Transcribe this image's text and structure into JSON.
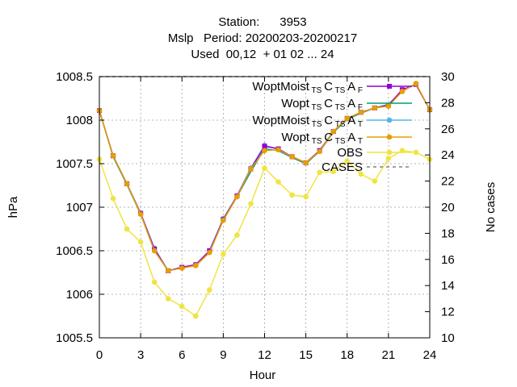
{
  "chart_data": {
    "type": "line",
    "title_lines": [
      "Station:      3953",
      "Mslp   Period: 20200203-20200217",
      "Used  00,12  + 01 02 ... 24"
    ],
    "xlabel": "Hour",
    "ylabel": "hPa",
    "y2label": "No cases",
    "xlim": [
      0,
      24
    ],
    "ylim": [
      1005.5,
      1008.5
    ],
    "y2lim": [
      10,
      30
    ],
    "xticks": [
      0,
      3,
      6,
      9,
      12,
      15,
      18,
      21,
      24
    ],
    "yticks": [
      1005.5,
      1006,
      1006.5,
      1007,
      1007.5,
      1008,
      1008.5
    ],
    "y2ticks": [
      10,
      12,
      14,
      16,
      18,
      20,
      22,
      24,
      26,
      28,
      30
    ],
    "grid": true,
    "legend_position": "top-right",
    "x": [
      0,
      1,
      2,
      3,
      4,
      5,
      6,
      7,
      8,
      9,
      10,
      11,
      12,
      13,
      14,
      15,
      16,
      17,
      18,
      19,
      20,
      21,
      22,
      23,
      24
    ],
    "series": [
      {
        "name": "WoptMoist TS CTS AF",
        "label_parts": [
          "WoptMoist",
          "TS",
          "C",
          "TS",
          "A",
          "F"
        ],
        "color": "#9400d3",
        "marker": "square",
        "values": [
          1008.11,
          1007.59,
          1007.27,
          1006.93,
          1006.52,
          1006.27,
          1006.31,
          1006.34,
          1006.5,
          1006.86,
          1007.13,
          1007.44,
          1007.7,
          1007.67,
          1007.58,
          1007.51,
          1007.65,
          1007.87,
          1008.02,
          1008.09,
          1008.14,
          1008.17,
          1008.35,
          1008.41,
          1008.12
        ]
      },
      {
        "name": "Wopt TS CTS AF",
        "label_parts": [
          "Wopt",
          "TS",
          "C",
          "TS",
          "A",
          "F"
        ],
        "color": "#009e73",
        "marker": "none",
        "values": [
          1008.11,
          1007.58,
          1007.26,
          1006.92,
          1006.5,
          1006.27,
          1006.31,
          1006.33,
          1006.48,
          1006.85,
          1007.12,
          1007.41,
          1007.67,
          1007.65,
          1007.57,
          1007.5,
          1007.64,
          1007.86,
          1008.01,
          1008.08,
          1008.14,
          1008.18,
          1008.34,
          1008.41,
          1008.12
        ]
      },
      {
        "name": "WoptMoist TS CTS AT",
        "label_parts": [
          "WoptMoist",
          "TS",
          "C",
          "TS",
          "A",
          "T"
        ],
        "color": "#56b4e9",
        "marker": "circle",
        "values": [
          1008.11,
          1007.59,
          1007.27,
          1006.93,
          1006.53,
          1006.27,
          1006.31,
          1006.34,
          1006.5,
          1006.87,
          1007.13,
          1007.45,
          1007.71,
          1007.67,
          1007.58,
          1007.51,
          1007.65,
          1007.87,
          1008.02,
          1008.09,
          1008.14,
          1008.17,
          1008.33,
          1008.42,
          1008.12
        ]
      },
      {
        "name": "Wopt TS CTS AT",
        "label_parts": [
          "Wopt",
          "TS",
          "C",
          "TS",
          "A",
          "T"
        ],
        "color": "#e69f00",
        "marker": "circle",
        "values": [
          1008.11,
          1007.59,
          1007.27,
          1006.92,
          1006.5,
          1006.27,
          1006.3,
          1006.33,
          1006.48,
          1006.85,
          1007.12,
          1007.44,
          1007.65,
          1007.66,
          1007.58,
          1007.51,
          1007.64,
          1007.87,
          1008.02,
          1008.09,
          1008.14,
          1008.16,
          1008.33,
          1008.42,
          1008.12
        ]
      },
      {
        "name": "OBS",
        "color": "#f0e442",
        "marker": "circle",
        "values": [
          1007.55,
          1007.1,
          1006.75,
          1006.6,
          1006.14,
          1005.95,
          1005.86,
          1005.75,
          1006.05,
          1006.46,
          1006.68,
          1007.04,
          1007.45,
          1007.29,
          1007.14,
          1007.12,
          1007.4,
          1007.41,
          1007.53,
          1007.38,
          1007.3,
          1007.56,
          1007.65,
          1007.63,
          1007.55
        ]
      },
      {
        "name": "CASES",
        "color": "#808080",
        "marker": "none",
        "dashed": true,
        "axis": "y2",
        "values": [
          30,
          30,
          30,
          30,
          30,
          30,
          30,
          30,
          30,
          30,
          30,
          30,
          30,
          30,
          30,
          30,
          30,
          30,
          30,
          30,
          30,
          30,
          30,
          30,
          30
        ]
      }
    ]
  }
}
